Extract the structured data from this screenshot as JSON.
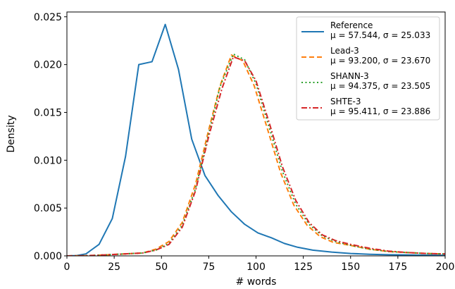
{
  "chart_data": {
    "type": "line",
    "title": "",
    "xlabel": "# words",
    "ylabel": "Density",
    "xlim": [
      0,
      200
    ],
    "ylim": [
      0,
      0.0255
    ],
    "xticks": [
      0,
      25,
      50,
      75,
      100,
      125,
      150,
      175,
      200
    ],
    "xtick_labels": [
      "0",
      "25",
      "50",
      "75",
      "100",
      "125",
      "150",
      "175",
      "200"
    ],
    "yticks": [
      0,
      0.005,
      0.01,
      0.015,
      0.02,
      0.025
    ],
    "ytick_labels": [
      "0.000",
      "0.005",
      "0.010",
      "0.015",
      "0.020",
      "0.025"
    ],
    "grid": false,
    "legend_position": "top-right",
    "series": [
      {
        "name": "Reference",
        "stats": "μ = 57.544, σ = 25.033",
        "color": "#1f77b4",
        "style": "solid",
        "x": [
          0,
          5,
          10,
          17,
          24,
          31,
          38,
          45,
          52,
          59,
          66,
          73,
          80,
          87,
          94,
          101,
          108,
          115,
          122,
          130,
          140,
          150,
          160,
          170,
          180,
          190,
          200
        ],
        "y": [
          0.0,
          3e-05,
          0.0002,
          0.0012,
          0.0039,
          0.0104,
          0.02,
          0.0203,
          0.0242,
          0.0195,
          0.0122,
          0.0084,
          0.0063,
          0.0046,
          0.0033,
          0.0024,
          0.0019,
          0.0013,
          0.0009,
          0.0006,
          0.0004,
          0.00025,
          0.00017,
          0.00012,
          0.0001,
          7e-05,
          6e-05
        ]
      },
      {
        "name": "Lead-3",
        "stats": "μ = 93.200, σ = 23.670",
        "color": "#ff7f0e",
        "style": "dashed",
        "x": [
          0,
          10,
          20,
          30,
          40,
          47,
          54,
          61,
          68,
          75,
          81,
          87,
          93,
          99,
          106,
          113,
          120,
          127,
          134,
          141,
          150,
          160,
          170,
          180,
          190,
          200
        ],
        "y": [
          0.0,
          2e-05,
          0.0001,
          0.0002,
          0.0003,
          0.0007,
          0.0015,
          0.0035,
          0.0075,
          0.0132,
          0.0178,
          0.021,
          0.0204,
          0.0178,
          0.0133,
          0.0087,
          0.0053,
          0.0032,
          0.002,
          0.0014,
          0.0011,
          0.0007,
          0.00045,
          0.00035,
          0.00025,
          0.0002
        ]
      },
      {
        "name": "SHANN-3",
        "stats": "μ = 94.375, σ = 23.505",
        "color": "#2ca02c",
        "style": "dotted",
        "x": [
          0,
          10,
          20,
          30,
          40,
          47,
          54,
          61,
          68,
          75,
          81,
          88,
          94,
          100,
          107,
          114,
          121,
          128,
          135,
          142,
          150,
          160,
          170,
          180,
          190,
          200
        ],
        "y": [
          0.0,
          2e-05,
          0.0001,
          0.0002,
          0.0003,
          0.0006,
          0.0013,
          0.0032,
          0.007,
          0.0128,
          0.0177,
          0.0211,
          0.0205,
          0.018,
          0.0134,
          0.0088,
          0.0054,
          0.0033,
          0.0021,
          0.0015,
          0.0011,
          0.0007,
          0.00045,
          0.00035,
          0.00025,
          0.0002
        ]
      },
      {
        "name": "SHTE-3",
        "stats": "μ = 95.411, σ = 23.886",
        "color": "#d62728",
        "style": "dashdot",
        "x": [
          0,
          10,
          20,
          30,
          40,
          47,
          54,
          61,
          68,
          75,
          82,
          88,
          94,
          100,
          107,
          114,
          121,
          128,
          135,
          142,
          150,
          160,
          170,
          180,
          190,
          200
        ],
        "y": [
          0.0,
          2e-05,
          0.0001,
          0.0002,
          0.0003,
          0.0006,
          0.0012,
          0.003,
          0.0068,
          0.0125,
          0.0175,
          0.0208,
          0.0204,
          0.0183,
          0.0139,
          0.0093,
          0.0058,
          0.0035,
          0.0022,
          0.0016,
          0.0012,
          0.0008,
          0.0005,
          0.00035,
          0.00025,
          0.0002
        ]
      }
    ]
  }
}
